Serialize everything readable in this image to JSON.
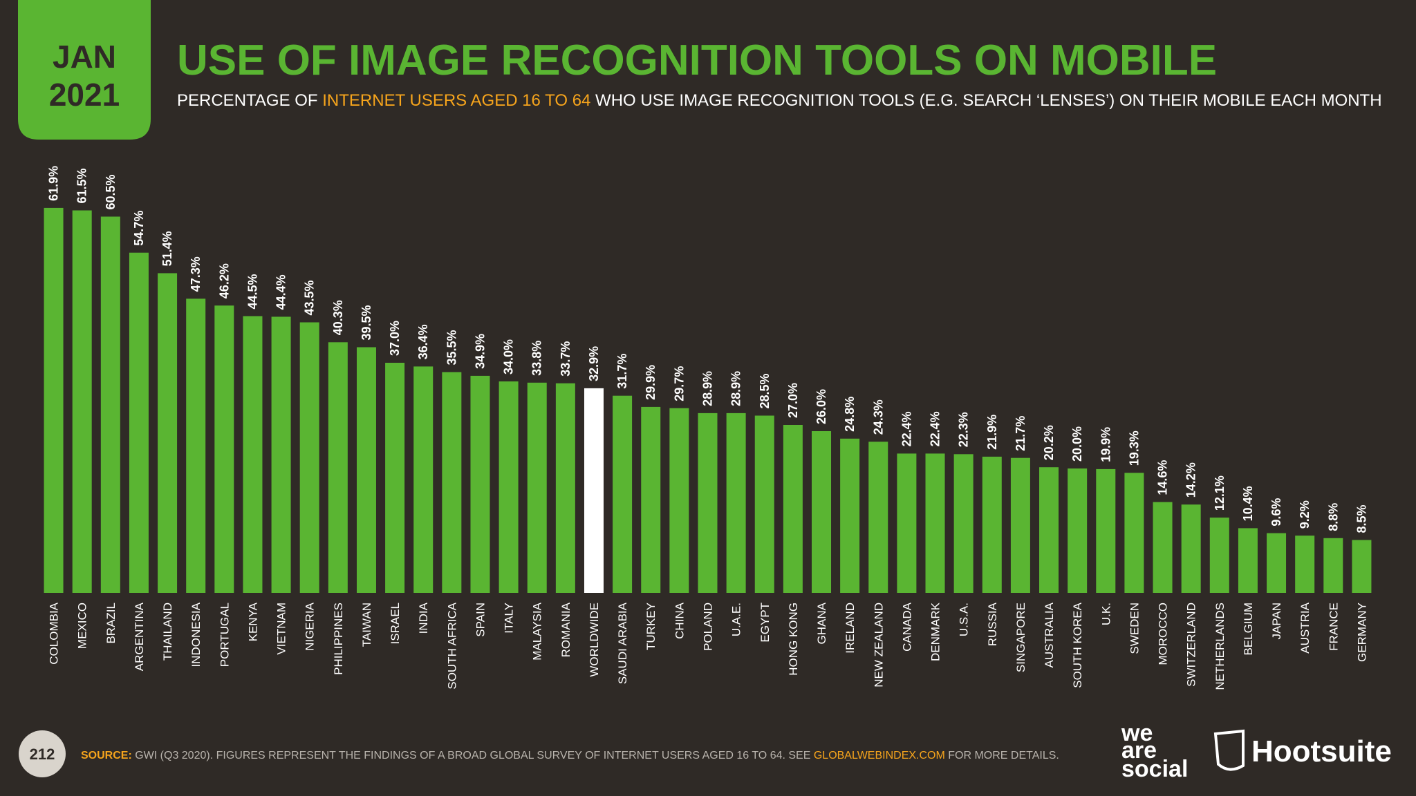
{
  "badge": {
    "month": "JAN",
    "year": "2021"
  },
  "chart_data": {
    "type": "bar",
    "title": "USE OF IMAGE RECOGNITION TOOLS ON MOBILE",
    "subtitle": [
      "PERCENTAGE OF ",
      "INTERNET USERS AGED 16 TO 64",
      " WHO USE IMAGE RECOGNITION TOOLS (E.G. SEARCH ‘LENSES’) ON THEIR MOBILE EACH MONTH"
    ],
    "categories": [
      "COLOMBIA",
      "MEXICO",
      "BRAZIL",
      "ARGENTINA",
      "THAILAND",
      "INDONESIA",
      "PORTUGAL",
      "KENYA",
      "VIETNAM",
      "NIGERIA",
      "PHILIPPINES",
      "TAIWAN",
      "ISRAEL",
      "INDIA",
      "SOUTH AFRICA",
      "SPAIN",
      "ITALY",
      "MALAYSIA",
      "ROMANIA",
      "WORLDWIDE",
      "SAUDI ARABIA",
      "TURKEY",
      "CHINA",
      "POLAND",
      "U.A.E.",
      "EGYPT",
      "HONG KONG",
      "GHANA",
      "IRELAND",
      "NEW ZEALAND",
      "CANADA",
      "DENMARK",
      "U.S.A.",
      "RUSSIA",
      "SINGAPORE",
      "AUSTRALIA",
      "SOUTH KOREA",
      "U.K.",
      "SWEDEN",
      "MOROCCO",
      "SWITZERLAND",
      "NETHERLANDS",
      "BELGIUM",
      "JAPAN",
      "AUSTRIA",
      "FRANCE",
      "GERMANY"
    ],
    "values": [
      61.9,
      61.5,
      60.5,
      54.7,
      51.4,
      47.3,
      46.2,
      44.5,
      44.4,
      43.5,
      40.3,
      39.5,
      37.0,
      36.4,
      35.5,
      34.9,
      34.0,
      33.8,
      33.7,
      32.9,
      31.7,
      29.9,
      29.7,
      28.9,
      28.9,
      28.5,
      27.0,
      26.0,
      24.8,
      24.3,
      22.4,
      22.4,
      22.3,
      21.9,
      21.7,
      20.2,
      20.0,
      19.9,
      19.3,
      14.6,
      14.2,
      12.1,
      10.4,
      9.6,
      9.2,
      8.8,
      8.5
    ],
    "value_labels": [
      "61.9%",
      "61.5%",
      "60.5%",
      "54.7%",
      "51.4%",
      "47.3%",
      "46.2%",
      "44.5%",
      "44.4%",
      "43.5%",
      "40.3%",
      "39.5%",
      "37.0%",
      "36.4%",
      "35.5%",
      "34.9%",
      "34.0%",
      "33.8%",
      "33.7%",
      "32.9%",
      "31.7%",
      "29.9%",
      "29.7%",
      "28.9%",
      "28.9%",
      "28.5%",
      "27.0%",
      "26.0%",
      "24.8%",
      "24.3%",
      "22.4%",
      "22.4%",
      "22.3%",
      "21.9%",
      "21.7%",
      "20.2%",
      "20.0%",
      "19.9%",
      "19.3%",
      "14.6%",
      "14.2%",
      "12.1%",
      "10.4%",
      "9.6%",
      "9.2%",
      "8.8%",
      "8.5%"
    ],
    "colors": [
      "#5ab532",
      "#5ab532",
      "#5ab532",
      "#5ab532",
      "#5ab532",
      "#5ab532",
      "#5ab532",
      "#5ab532",
      "#5ab532",
      "#5ab532",
      "#5ab532",
      "#5ab532",
      "#5ab532",
      "#5ab532",
      "#5ab532",
      "#5ab532",
      "#5ab532",
      "#5ab532",
      "#5ab532",
      "#ffffff",
      "#5ab532",
      "#5ab532",
      "#5ab532",
      "#5ab532",
      "#5ab532",
      "#5ab532",
      "#5ab532",
      "#5ab532",
      "#5ab532",
      "#5ab532",
      "#5ab532",
      "#5ab532",
      "#5ab532",
      "#5ab532",
      "#5ab532",
      "#5ab532",
      "#5ab532",
      "#5ab532",
      "#5ab532",
      "#5ab532",
      "#5ab532",
      "#5ab532",
      "#5ab532",
      "#5ab532",
      "#5ab532",
      "#5ab532",
      "#5ab532"
    ],
    "ylim": [
      0,
      70
    ]
  },
  "footer": {
    "page": "212",
    "source": [
      "SOURCE:",
      " GWI (Q3 2020). FIGURES REPRESENT THE FINDINGS OF A BROAD GLOBAL SURVEY OF INTERNET USERS AGED 16 TO 64. SEE ",
      "GLOBALWEBINDEX.COM",
      " FOR MORE DETAILS."
    ],
    "logo_was": [
      "we",
      "are",
      "social"
    ],
    "logo_hootsuite": "Hootsuite"
  }
}
